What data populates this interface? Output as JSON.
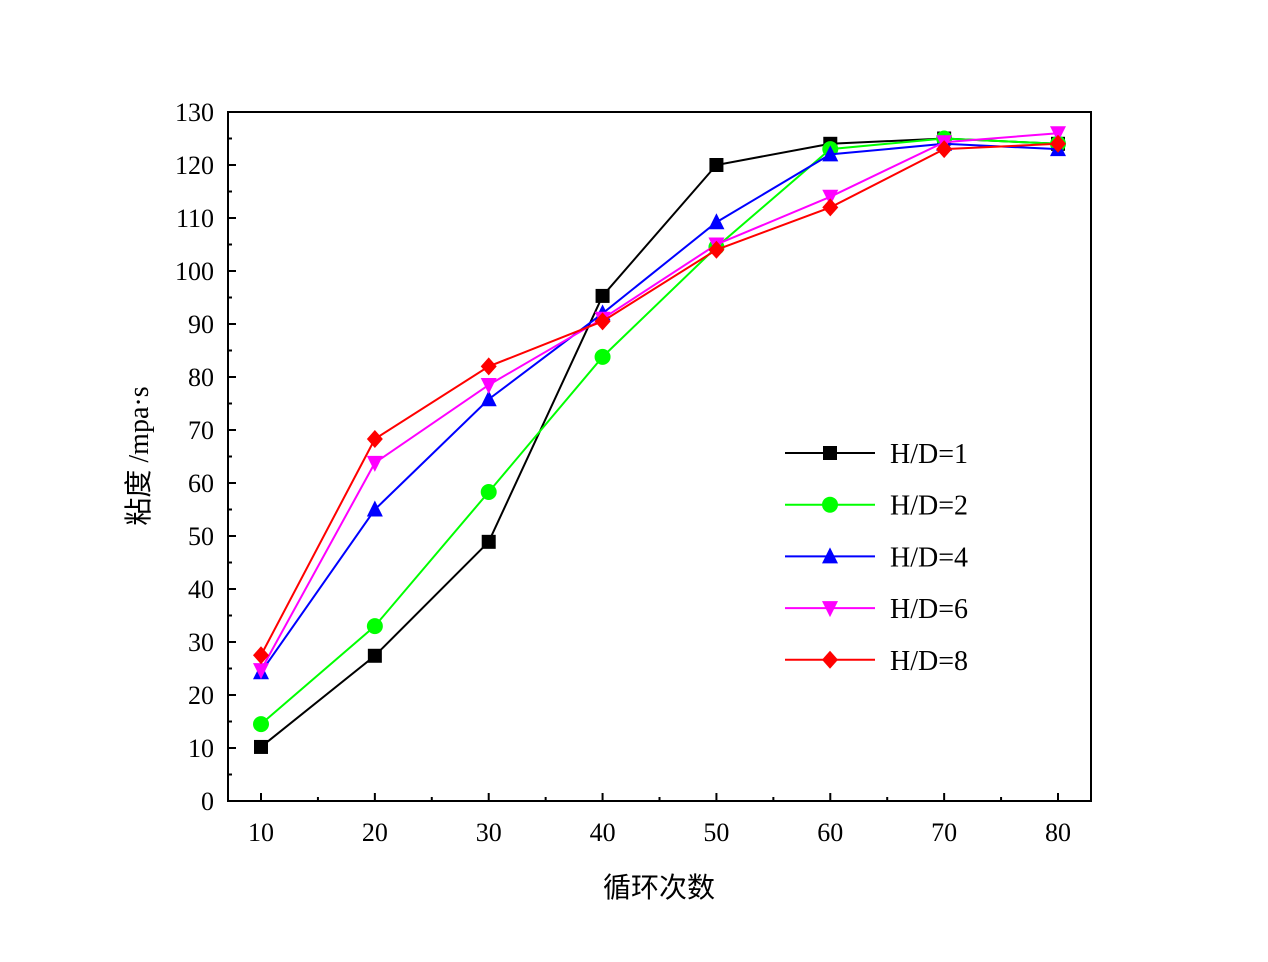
{
  "chart_data": {
    "type": "line",
    "title": "",
    "xlabel": "循环次数",
    "ylabel": "粘度 /mpa·s",
    "xlim": [
      7,
      83
    ],
    "ylim": [
      0,
      130
    ],
    "x": [
      10,
      20,
      30,
      40,
      50,
      60,
      70,
      80
    ],
    "xticks": [
      10,
      20,
      30,
      40,
      50,
      60,
      70,
      80
    ],
    "yticks": [
      0,
      10,
      20,
      30,
      40,
      50,
      60,
      70,
      80,
      90,
      100,
      110,
      120,
      130
    ],
    "legend_position": "center-right",
    "grid": false,
    "series": [
      {
        "name": "H/D=1",
        "color": "#000000",
        "marker": "square",
        "values": [
          10.2,
          27.4,
          48.9,
          95.3,
          120,
          124,
          125,
          124
        ]
      },
      {
        "name": "H/D=2",
        "color": "#00ff00",
        "marker": "circle",
        "values": [
          14.5,
          33,
          58.3,
          83.8,
          104.5,
          123,
          125,
          124
        ]
      },
      {
        "name": "H/D=4",
        "color": "#0000ff",
        "marker": "triangle-up",
        "values": [
          24.3,
          55,
          75.8,
          92,
          109.2,
          122,
          124,
          123
        ]
      },
      {
        "name": "H/D=6",
        "color": "#ff00ff",
        "marker": "triangle-down",
        "values": [
          24.7,
          63.8,
          78.5,
          91,
          105,
          114,
          124.3,
          126
        ]
      },
      {
        "name": "H/D=8",
        "color": "#ff0000",
        "marker": "diamond",
        "values": [
          27.5,
          68.3,
          82,
          90.5,
          104,
          112,
          123,
          124
        ]
      }
    ]
  }
}
